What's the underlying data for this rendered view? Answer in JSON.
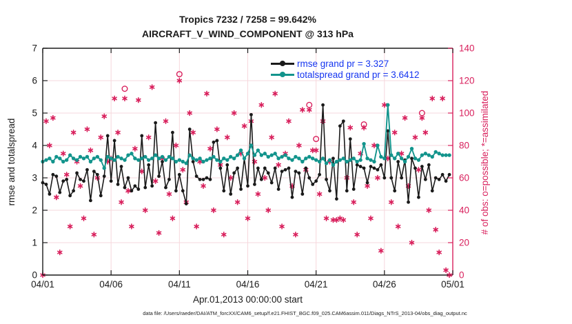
{
  "chart_data": {
    "type": "line",
    "title_line1": "Tropics 7232 / 7258 = 99.642%",
    "title_line2": "AIRCRAFT_V_WIND_COMPONENT @ 313 hPa",
    "xlabel": "Apr.01,2013 00:00:00 start",
    "ylabel_left": "rmse and totalspread",
    "ylabel_right": "# of obs: o=possible; *=assimilated",
    "footnote": "data file: /Users/raeder/DAI/ATM_forcXX/CAM6_setup/f.e21.FHIST_BGC.f09_025.CAM6assim.011/Diags_NTrS_2013-04/obs_diag_output.nc",
    "colors": {
      "rmse": "#1a1a1a",
      "totalspread": "#12948C",
      "obs": "#D81E5B",
      "grid": "#F6D7DC",
      "legend_text": "#1535F0",
      "axis_box": "#1a1a1a"
    },
    "grid": true,
    "legend_position": "top-right",
    "x_axis": {
      "tick_positions": [
        0,
        5,
        10,
        15,
        20,
        25,
        30
      ],
      "tick_labels": [
        "04/01",
        "04/06",
        "04/11",
        "04/16",
        "04/21",
        "04/26",
        "05/01"
      ]
    },
    "y_axis_left": {
      "min": 0,
      "max": 7,
      "ticks": [
        0,
        1,
        2,
        3,
        4,
        5,
        6,
        7
      ]
    },
    "y_axis_right": {
      "min": 0,
      "max": 140,
      "ticks": [
        0,
        20,
        40,
        60,
        80,
        100,
        120,
        140
      ]
    },
    "series": {
      "rmse": {
        "legend_label": "rmse grand pr = 3.327",
        "grand_pr": 3.327,
        "axis": "left",
        "t_start": 0,
        "t_step": 0.25,
        "values": [
          2.85,
          2.8,
          2.5,
          3.1,
          3.05,
          2.55,
          2.9,
          2.95,
          2.45,
          2.6,
          3.15,
          2.95,
          2.9,
          3.25,
          2.3,
          3.2,
          3.1,
          2.45,
          3.05,
          4.3,
          2.9,
          4.15,
          2.8,
          3.35,
          2.7,
          3.0,
          2.6,
          2.75,
          2.65,
          4.3,
          2.7,
          3.4,
          2.75,
          4.7,
          3.05,
          3.5,
          2.7,
          2.95,
          4.4,
          2.6,
          3.1,
          2.6,
          2.2,
          4.5,
          3.5,
          3.05,
          2.95,
          2.95,
          3.0,
          2.95,
          4.1,
          4.15,
          3.3,
          2.6,
          3.4,
          2.5,
          3.15,
          3.3,
          2.65,
          3.6,
          2.75,
          4.95,
          2.8,
          3.3,
          2.95,
          3.3,
          3.15,
          2.85,
          3.3,
          2.65,
          3.2,
          3.25,
          3.3,
          2.4,
          3.2,
          3.15,
          2.5,
          3.3,
          3.0,
          2.8,
          2.9,
          3.1,
          5.25,
          2.95,
          2.6,
          3.6,
          2.35,
          4.6,
          4.75,
          2.6,
          4.2,
          2.65,
          3.4,
          3.35,
          3.3,
          2.85,
          3.35,
          3.3,
          3.25,
          3.4,
          3.0,
          4.45,
          3.0,
          2.6,
          3.5,
          3.0,
          3.55,
          2.25,
          3.6,
          3.3,
          2.4,
          3.35,
          2.95,
          3.4,
          2.6,
          3.0,
          2.95,
          3.1,
          2.9,
          3.1
        ]
      },
      "totalspread": {
        "legend_label": "totalspread grand pr = 3.6412",
        "grand_pr": 3.6412,
        "axis": "left",
        "t_start": 0,
        "t_step": 0.25,
        "values": [
          3.5,
          3.55,
          3.6,
          3.5,
          3.65,
          3.6,
          3.5,
          3.55,
          3.7,
          3.6,
          3.55,
          3.65,
          3.6,
          3.65,
          3.5,
          3.6,
          3.65,
          3.55,
          3.3,
          3.65,
          3.6,
          3.55,
          3.65,
          3.6,
          3.55,
          3.7,
          3.75,
          3.6,
          3.55,
          3.6,
          3.65,
          3.55,
          3.6,
          3.7,
          3.6,
          3.65,
          3.55,
          3.65,
          3.6,
          3.5,
          3.55,
          3.5,
          3.45,
          3.7,
          3.6,
          3.55,
          3.6,
          3.5,
          3.55,
          3.6,
          3.65,
          3.55,
          3.5,
          3.6,
          3.55,
          3.65,
          3.6,
          3.7,
          3.85,
          3.6,
          3.75,
          4.0,
          3.7,
          3.85,
          3.7,
          3.75,
          3.65,
          3.7,
          3.75,
          3.6,
          3.65,
          3.7,
          3.6,
          3.55,
          3.65,
          3.6,
          3.5,
          3.6,
          3.65,
          3.6,
          3.55,
          3.5,
          3.6,
          3.45,
          3.55,
          3.4,
          3.5,
          3.55,
          3.6,
          3.5,
          3.55,
          3.6,
          3.5,
          3.55,
          4.05,
          3.6,
          3.55,
          3.5,
          4.0,
          3.65,
          3.6,
          5.25,
          3.7,
          3.6,
          3.75,
          3.6,
          3.5,
          3.65,
          3.9,
          3.6,
          3.55,
          3.7,
          3.75,
          3.7,
          3.65,
          3.8,
          3.75,
          3.7,
          3.7,
          3.7
        ]
      }
    },
    "obs_counts": {
      "axis": "right",
      "marker_assimilated": "asterisk",
      "marker_possible": "circle",
      "t_start": 0,
      "t_step": 0.25,
      "assimilated": [
        0,
        95,
        80,
        97,
        48,
        14,
        75,
        62,
        30,
        88,
        70,
        55,
        35,
        90,
        77,
        25,
        60,
        85,
        98,
        70,
        72,
        109,
        88,
        45,
        109,
        52,
        30,
        78,
        108,
        64,
        40,
        85,
        116,
        58,
        26,
        72,
        95,
        50,
        35,
        80,
        120,
        65,
        45,
        100,
        88,
        30,
        70,
        55,
        112,
        78,
        40,
        90,
        68,
        25,
        85,
        60,
        100,
        45,
        75,
        92,
        35,
        95,
        70,
        50,
        105,
        60,
        40,
        85,
        112,
        68,
        30,
        75,
        95,
        55,
        25,
        80,
        102,
        65,
        102,
        77,
        77,
        50,
        95,
        35,
        70,
        34,
        34,
        35,
        34,
        60,
        91,
        45,
        25,
        75,
        91,
        55,
        35,
        80,
        60,
        15,
        105,
        72,
        45,
        88,
        30,
        75,
        97,
        55,
        20,
        85,
        65,
        97,
        88,
        40,
        109,
        28,
        14,
        109,
        3,
        0
      ],
      "possible_extra": [
        {
          "t": 6.0,
          "possible": 115
        },
        {
          "t": 10.0,
          "possible": 124
        },
        {
          "t": 19.5,
          "possible": 105
        },
        {
          "t": 20.0,
          "possible": 84
        },
        {
          "t": 23.5,
          "possible": 93
        },
        {
          "t": 27.75,
          "possible": 100
        }
      ]
    }
  }
}
